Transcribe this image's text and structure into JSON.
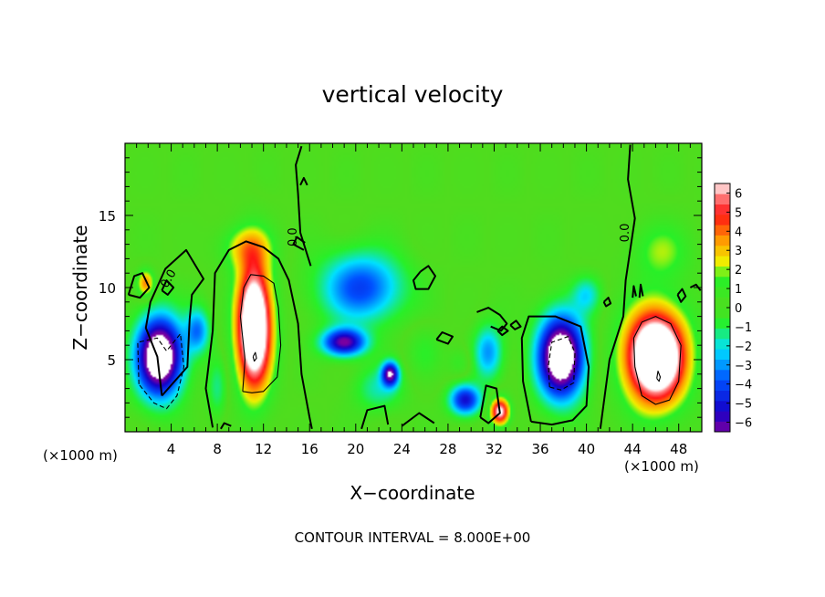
{
  "chart_data": {
    "type": "heatmap",
    "title": "vertical velocity",
    "xlabel": "X−coordinate",
    "ylabel": "Z−coordinate",
    "x_unit": "(×1000 m)",
    "x_unit_right": "(×1000 m)",
    "xlim": [
      0,
      50
    ],
    "ylim": [
      0,
      20
    ],
    "x_ticks": [
      "4",
      "8",
      "12",
      "16",
      "20",
      "24",
      "28",
      "32",
      "36",
      "40",
      "44",
      "48"
    ],
    "y_ticks": [
      "5",
      "10",
      "15"
    ],
    "colorbar_range": [
      -6,
      6
    ],
    "colorbar_ticks": [
      "6",
      "5",
      "4",
      "3",
      "2",
      "1",
      "0",
      "−1",
      "−2",
      "−3",
      "−4",
      "−5",
      "−6"
    ],
    "contour_label": "0.0",
    "footer": "CONTOUR INTERVAL = 8.000E+00",
    "colors": {
      "purple": "#7a00a0",
      "deep_blue": "#1400c8",
      "blue": "#0050ff",
      "cyan": "#00e1ff",
      "light_green": "#28f028",
      "green": "#50dc1e",
      "yellow": "#f0f000",
      "orange": "#ffa000",
      "red": "#ff1414",
      "pink": "#ff8c8c",
      "white": "#ffffff"
    },
    "features": [
      {
        "x": 3.0,
        "z": 5.2,
        "sx": 1.9,
        "sz": 2.6,
        "w": -9.0
      },
      {
        "x": 6.3,
        "z": 7.0,
        "sx": 1.0,
        "sz": 1.5,
        "w": -3.0
      },
      {
        "x": 11.2,
        "z": 7.3,
        "sx": 1.5,
        "sz": 4.3,
        "w": 9.5
      },
      {
        "x": 10.5,
        "z": 12.8,
        "sx": 2.2,
        "sz": 1.5,
        "w": 2.3
      },
      {
        "x": 1.8,
        "z": 10.3,
        "sx": 0.7,
        "sz": 0.9,
        "w": 3.5
      },
      {
        "x": 20.5,
        "z": 10.0,
        "sx": 3.4,
        "sz": 2.3,
        "w": -3.8
      },
      {
        "x": 19.0,
        "z": 6.2,
        "sx": 1.8,
        "sz": 0.9,
        "w": -6.0
      },
      {
        "x": 23.0,
        "z": 4.0,
        "sx": 0.7,
        "sz": 0.8,
        "w": -6.0
      },
      {
        "x": 26.0,
        "z": 5.5,
        "sx": 1.4,
        "sz": 1.6,
        "w": 1.2
      },
      {
        "x": 29.5,
        "z": 2.2,
        "sx": 1.3,
        "sz": 1.0,
        "w": -4.8
      },
      {
        "x": 29.0,
        "z": 4.8,
        "sx": 1.0,
        "sz": 1.0,
        "w": 1.0
      },
      {
        "x": 32.5,
        "z": 1.4,
        "sx": 0.8,
        "sz": 0.9,
        "w": 6.5
      },
      {
        "x": 31.5,
        "z": 5.5,
        "sx": 1.2,
        "sz": 1.8,
        "w": -2.8
      },
      {
        "x": 37.8,
        "z": 5.2,
        "sx": 1.9,
        "sz": 2.7,
        "w": -9.0
      },
      {
        "x": 40.0,
        "z": 9.5,
        "sx": 1.2,
        "sz": 1.2,
        "w": -1.8
      },
      {
        "x": 46.0,
        "z": 5.2,
        "sx": 2.6,
        "sz": 3.2,
        "w": 10.0
      },
      {
        "x": 46.5,
        "z": 12.5,
        "sx": 2.5,
        "sz": 2.0,
        "w": 1.8
      },
      {
        "x": 22.0,
        "z": 3.0,
        "sx": 2.0,
        "sz": 1.5,
        "w": -1.5
      },
      {
        "x": 8.0,
        "z": 3.0,
        "sx": 0.8,
        "sz": 2.0,
        "w": -1.2
      }
    ],
    "contours": [
      {
        "style": "solid",
        "points": [
          [
            3.2,
            2.5
          ],
          [
            5.4,
            4.5
          ],
          [
            5.6,
            7.8
          ],
          [
            5.8,
            9.5
          ],
          [
            6.8,
            10.6
          ],
          [
            5.3,
            12.6
          ],
          [
            3.5,
            11.3
          ],
          [
            2.2,
            9.0
          ],
          [
            1.8,
            7.2
          ],
          [
            2.8,
            5.2
          ],
          [
            3.2,
            2.5
          ]
        ]
      },
      {
        "style": "solid",
        "points": [
          [
            7.6,
            0.3
          ],
          [
            7.0,
            3.0
          ],
          [
            7.6,
            7.0
          ],
          [
            7.8,
            11.0
          ],
          [
            9.0,
            12.6
          ],
          [
            10.5,
            13.2
          ],
          [
            12.0,
            12.8
          ],
          [
            13.3,
            12.0
          ],
          [
            14.2,
            10.5
          ],
          [
            15.0,
            7.5
          ],
          [
            15.3,
            4.0
          ],
          [
            16.0,
            1.0
          ],
          [
            16.2,
            0.2
          ]
        ]
      },
      {
        "style": "solid",
        "points": [
          [
            16.1,
            11.5
          ],
          [
            15.2,
            13.8
          ],
          [
            15.0,
            16.5
          ],
          [
            14.8,
            18.5
          ],
          [
            15.3,
            19.8
          ]
        ]
      },
      {
        "style": "solid",
        "points": [
          [
            41.2,
            0.2
          ],
          [
            42.0,
            5.0
          ],
          [
            43.2,
            8.0
          ],
          [
            43.4,
            10.5
          ],
          [
            44.2,
            14.8
          ],
          [
            43.6,
            17.5
          ],
          [
            43.8,
            19.9
          ]
        ]
      },
      {
        "style": "solid",
        "points": [
          [
            35.2,
            0.7
          ],
          [
            34.5,
            3.5
          ],
          [
            34.4,
            6.5
          ],
          [
            35.0,
            8.0
          ],
          [
            37.3,
            8.0
          ],
          [
            39.5,
            7.3
          ],
          [
            40.2,
            4.5
          ],
          [
            40.0,
            1.8
          ],
          [
            38.8,
            0.8
          ],
          [
            37.0,
            0.5
          ],
          [
            35.2,
            0.7
          ]
        ]
      },
      {
        "style": "solid",
        "points": [
          [
            25.6,
            11.1
          ],
          [
            25.0,
            10.5
          ],
          [
            25.2,
            9.9
          ],
          [
            26.3,
            9.9
          ],
          [
            26.9,
            10.8
          ],
          [
            26.3,
            11.5
          ],
          [
            25.6,
            11.1
          ]
        ]
      },
      {
        "style": "solid",
        "points": [
          [
            24.0,
            0.4
          ],
          [
            25.5,
            1.3
          ],
          [
            26.8,
            0.6
          ]
        ]
      },
      {
        "style": "solid",
        "points": [
          [
            20.5,
            0.2
          ],
          [
            21.0,
            1.5
          ],
          [
            22.5,
            1.8
          ],
          [
            22.8,
            0.5
          ]
        ]
      },
      {
        "style": "solid",
        "points": [
          [
            8.3,
            0.2
          ],
          [
            8.6,
            0.6
          ],
          [
            9.2,
            0.4
          ]
        ]
      },
      {
        "style": "solid",
        "points": [
          [
            27.0,
            6.4
          ],
          [
            27.5,
            6.9
          ],
          [
            28.4,
            6.6
          ],
          [
            28.0,
            6.1
          ],
          [
            27.0,
            6.4
          ]
        ]
      },
      {
        "style": "solid",
        "points": [
          [
            30.5,
            8.3
          ],
          [
            31.5,
            8.6
          ],
          [
            32.5,
            8.1
          ],
          [
            33.1,
            7.5
          ],
          [
            32.6,
            7.0
          ],
          [
            31.7,
            7.3
          ]
        ]
      },
      {
        "style": "solid",
        "points": [
          [
            32.3,
            7.0
          ],
          [
            32.7,
            7.3
          ],
          [
            33.2,
            7.0
          ],
          [
            32.7,
            6.7
          ],
          [
            32.3,
            7.0
          ]
        ]
      },
      {
        "style": "solid",
        "points": [
          [
            33.4,
            7.4
          ],
          [
            33.9,
            7.7
          ],
          [
            34.3,
            7.3
          ],
          [
            33.8,
            7.1
          ],
          [
            33.4,
            7.4
          ]
        ]
      },
      {
        "style": "solid",
        "points": [
          [
            15.5,
            12.6
          ],
          [
            14.6,
            13.0
          ],
          [
            14.9,
            13.5
          ],
          [
            15.6,
            13.1
          ]
        ]
      },
      {
        "style": "solid",
        "points": [
          [
            3.2,
            9.8
          ],
          [
            3.6,
            10.5
          ],
          [
            4.2,
            10.0
          ],
          [
            3.7,
            9.5
          ],
          [
            3.2,
            9.8
          ]
        ]
      },
      {
        "style": "solid",
        "points": [
          [
            44.0,
            9.3
          ],
          [
            44.1,
            10.1
          ],
          [
            44.3,
            9.4
          ]
        ]
      },
      {
        "style": "solid",
        "points": [
          [
            44.6,
            9.3
          ],
          [
            44.7,
            10.2
          ],
          [
            44.9,
            9.4
          ]
        ]
      },
      {
        "style": "solid",
        "points": [
          [
            0.3,
            9.5
          ],
          [
            0.8,
            10.8
          ],
          [
            1.5,
            11.0
          ],
          [
            2.1,
            10.0
          ],
          [
            1.3,
            9.3
          ],
          [
            0.3,
            9.5
          ]
        ]
      },
      {
        "style": "solid",
        "points": [
          [
            47.9,
            9.5
          ],
          [
            48.3,
            9.9
          ],
          [
            48.6,
            9.4
          ],
          [
            48.2,
            9.0
          ],
          [
            47.9,
            9.5
          ]
        ]
      },
      {
        "style": "solid",
        "points": [
          [
            41.5,
            9.0
          ],
          [
            41.9,
            9.3
          ],
          [
            42.1,
            8.9
          ],
          [
            41.7,
            8.7
          ],
          [
            41.5,
            9.0
          ]
        ]
      },
      {
        "style": "solid",
        "points": [
          [
            15.2,
            17.1
          ],
          [
            15.5,
            17.6
          ],
          [
            15.8,
            17.1
          ]
        ]
      },
      {
        "style": "solid",
        "points": [
          [
            49.0,
            10.0
          ],
          [
            49.5,
            10.2
          ],
          [
            49.9,
            9.8
          ]
        ]
      },
      {
        "style": "solid",
        "points": [
          [
            30.8,
            1.0
          ],
          [
            31.3,
            3.2
          ],
          [
            32.2,
            3.0
          ],
          [
            32.5,
            1.3
          ],
          [
            31.5,
            0.6
          ],
          [
            30.8,
            1.0
          ]
        ]
      },
      {
        "style": "thin",
        "points": [
          [
            10.2,
            2.8
          ],
          [
            10.4,
            5.0
          ],
          [
            10.0,
            8.0
          ],
          [
            10.3,
            10.0
          ],
          [
            10.9,
            10.9
          ],
          [
            12.0,
            10.8
          ],
          [
            12.9,
            10.3
          ],
          [
            13.3,
            8.6
          ],
          [
            13.5,
            6.0
          ],
          [
            13.2,
            3.8
          ],
          [
            12.0,
            2.8
          ],
          [
            11.0,
            2.7
          ],
          [
            10.2,
            2.8
          ]
        ]
      },
      {
        "style": "thin",
        "points": [
          [
            11.1,
            5.2
          ],
          [
            11.3,
            5.5
          ],
          [
            11.4,
            5.1
          ],
          [
            11.2,
            4.9
          ],
          [
            11.1,
            5.2
          ]
        ]
      },
      {
        "style": "thin",
        "points": [
          [
            44.2,
            4.5
          ],
          [
            44.1,
            6.5
          ],
          [
            44.8,
            7.6
          ],
          [
            46.0,
            8.0
          ],
          [
            47.3,
            7.5
          ],
          [
            48.2,
            6.0
          ],
          [
            48.0,
            3.5
          ],
          [
            47.2,
            2.2
          ],
          [
            46.0,
            1.9
          ],
          [
            44.8,
            2.5
          ],
          [
            44.2,
            4.5
          ]
        ]
      },
      {
        "style": "thin",
        "points": [
          [
            46.1,
            3.7
          ],
          [
            46.2,
            4.2
          ],
          [
            46.4,
            3.8
          ],
          [
            46.3,
            3.5
          ],
          [
            46.1,
            3.7
          ]
        ]
      },
      {
        "style": "dashed",
        "points": [
          [
            1.2,
            3.3
          ],
          [
            1.1,
            6.2
          ],
          [
            2.8,
            6.5
          ],
          [
            3.6,
            5.6
          ],
          [
            4.8,
            6.8
          ],
          [
            5.1,
            4.5
          ],
          [
            4.5,
            2.5
          ],
          [
            3.6,
            1.6
          ],
          [
            2.5,
            2.0
          ],
          [
            1.2,
            3.3
          ]
        ]
      },
      {
        "style": "dashed",
        "points": [
          [
            36.8,
            3.1
          ],
          [
            36.7,
            4.6
          ],
          [
            37.0,
            6.2
          ],
          [
            38.4,
            6.6
          ],
          [
            39.0,
            5.5
          ],
          [
            38.9,
            3.4
          ],
          [
            37.8,
            2.9
          ],
          [
            36.8,
            3.1
          ]
        ]
      }
    ],
    "contour_labels": [
      {
        "x": 3.8,
        "z": 10.6,
        "angle": -60
      },
      {
        "x": 14.6,
        "z": 13.5,
        "angle": -90
      },
      {
        "x": 43.4,
        "z": 13.8,
        "angle": -90
      }
    ]
  }
}
